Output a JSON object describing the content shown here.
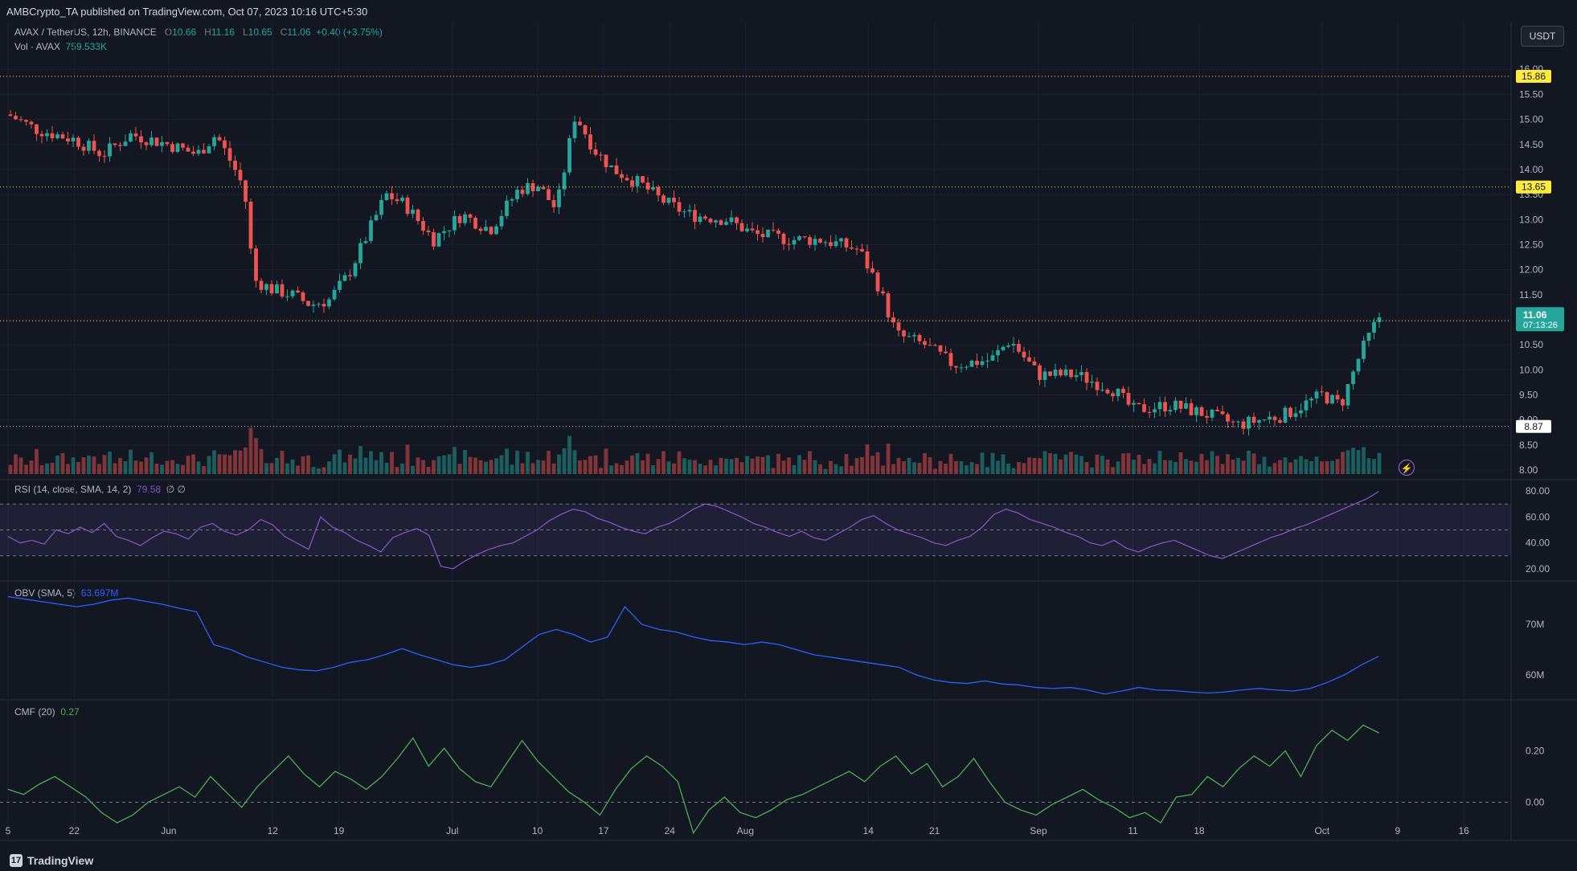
{
  "header": {
    "publisher": "AMBCrypto_TA published on TradingView.com, Oct 07, 2023 10:16 UTC+5:30",
    "currency_button": "USDT"
  },
  "legend": {
    "symbol": "AVAX / TetherUS, 12h, BINANCE",
    "o_key": "O",
    "o_val": "10.66",
    "h_key": "H",
    "h_val": "11.16",
    "l_key": "L",
    "l_val": "10.65",
    "c_key": "C",
    "c_val": "11.06",
    "change": "+0.40 (+3.75%)",
    "vol_label": "Vol · AVAX",
    "vol_val": "759.533K",
    "rsi_label": "RSI (14, close, SMA, 14, 2)",
    "rsi_val": "79.58",
    "rsi_extra": "∅ ∅",
    "obv_label": "OBV (SMA, 5)",
    "obv_val": "63.697M",
    "cmf_label": "CMF (20)",
    "cmf_val": "0.27"
  },
  "footer": {
    "brand": "TradingView",
    "logo": "17"
  },
  "colors": {
    "bull": "#26a69a",
    "bear": "#ef5350",
    "rsi": "#7e57c2",
    "obv": "#2962ff",
    "cmf": "#4caf50",
    "level": "#ffeb3b"
  },
  "chart_data": [
    {
      "type": "candlestick",
      "title": "AVAX / TetherUS, 12h, BINANCE",
      "x_tick_labels": [
        "5",
        "22",
        "Jun",
        "12",
        "19",
        "Jul",
        "10",
        "17",
        "24",
        "Aug",
        "14",
        "21",
        "Sep",
        "11",
        "18",
        "Oct",
        "9",
        "16"
      ],
      "y_tick_labels": [
        "8.00",
        "8.50",
        "9.00",
        "9.50",
        "10.00",
        "10.50",
        "11.00",
        "11.50",
        "12.00",
        "12.50",
        "13.00",
        "13.50",
        "14.00",
        "14.50",
        "15.00",
        "15.50",
        "16.00"
      ],
      "ylim": [
        8.0,
        16.1
      ],
      "close_path": [
        [
          "2023-05-15",
          15.1
        ],
        [
          "2023-05-18",
          14.8
        ],
        [
          "2023-05-22",
          14.6
        ],
        [
          "2023-05-25",
          14.3
        ],
        [
          "2023-05-28",
          14.7
        ],
        [
          "2023-06-01",
          14.5
        ],
        [
          "2023-06-04",
          14.3
        ],
        [
          "2023-06-06",
          14.7
        ],
        [
          "2023-06-08",
          14.0
        ],
        [
          "2023-06-09",
          13.6
        ],
        [
          "2023-06-10",
          11.8
        ],
        [
          "2023-06-12",
          11.6
        ],
        [
          "2023-06-14",
          11.5
        ],
        [
          "2023-06-16",
          11.3
        ],
        [
          "2023-06-18",
          11.4
        ],
        [
          "2023-06-20",
          11.9
        ],
        [
          "2023-06-22",
          12.7
        ],
        [
          "2023-06-24",
          13.5
        ],
        [
          "2023-06-26",
          13.3
        ],
        [
          "2023-06-29",
          12.6
        ],
        [
          "2023-07-02",
          13.1
        ],
        [
          "2023-07-05",
          12.8
        ],
        [
          "2023-07-08",
          13.6
        ],
        [
          "2023-07-10",
          13.7
        ],
        [
          "2023-07-12",
          13.2
        ],
        [
          "2023-07-14",
          15.1
        ],
        [
          "2023-07-16",
          14.4
        ],
        [
          "2023-07-18",
          14.0
        ],
        [
          "2023-07-21",
          13.7
        ],
        [
          "2023-07-23",
          13.4
        ],
        [
          "2023-07-26",
          13.1
        ],
        [
          "2023-07-30",
          13.0
        ],
        [
          "2023-08-02",
          12.7
        ],
        [
          "2023-08-06",
          12.6
        ],
        [
          "2023-08-09",
          12.6
        ],
        [
          "2023-08-13",
          12.4
        ],
        [
          "2023-08-15",
          11.7
        ],
        [
          "2023-08-17",
          10.7
        ],
        [
          "2023-08-20",
          10.5
        ],
        [
          "2023-08-23",
          10.1
        ],
        [
          "2023-08-27",
          10.2
        ],
        [
          "2023-08-29",
          10.6
        ],
        [
          "2023-09-01",
          9.9
        ],
        [
          "2023-09-05",
          9.9
        ],
        [
          "2023-09-09",
          9.6
        ],
        [
          "2023-09-11",
          9.2
        ],
        [
          "2023-09-15",
          9.3
        ],
        [
          "2023-09-19",
          9.1
        ],
        [
          "2023-09-22",
          8.9
        ],
        [
          "2023-09-27",
          9.1
        ],
        [
          "2023-10-01",
          9.5
        ],
        [
          "2023-10-03",
          9.3
        ],
        [
          "2023-10-05",
          10.3
        ],
        [
          "2023-10-07",
          11.06
        ]
      ],
      "price_levels": [
        15.86,
        13.65,
        10.98,
        8.87
      ],
      "last_price": "11.06",
      "countdown": "07:13:26",
      "level_labels": [
        "15.86",
        "13.65",
        "10.98",
        "8.87"
      ]
    },
    {
      "type": "line",
      "name": "RSI (14, close, SMA, 14, 2)",
      "y_tick_labels": [
        "20.00",
        "40.00",
        "60.00",
        "80.00"
      ],
      "ylim": [
        15,
        85
      ],
      "band": [
        30,
        70
      ],
      "values": [
        45,
        40,
        42,
        39,
        50,
        47,
        52,
        48,
        55,
        45,
        42,
        38,
        44,
        49,
        47,
        43,
        52,
        55,
        49,
        46,
        50,
        58,
        54,
        45,
        40,
        35,
        60,
        52,
        48,
        42,
        38,
        33,
        44,
        48,
        51,
        46,
        22,
        20,
        26,
        31,
        35,
        38,
        40,
        45,
        50,
        57,
        62,
        66,
        64,
        59,
        56,
        52,
        49,
        47,
        52,
        55,
        60,
        66,
        70,
        68,
        64,
        60,
        55,
        52,
        48,
        45,
        49,
        44,
        42,
        47,
        52,
        58,
        61,
        55,
        50,
        47,
        44,
        40,
        38,
        42,
        45,
        52,
        62,
        66,
        63,
        58,
        55,
        52,
        48,
        45,
        40,
        38,
        42,
        36,
        33,
        37,
        40,
        42,
        38,
        34,
        30,
        28,
        32,
        36,
        40,
        44,
        47,
        51,
        54,
        58,
        62,
        66,
        70,
        74,
        79.58
      ]
    },
    {
      "type": "line",
      "name": "OBV (SMA, 5)",
      "y_tick_labels": [
        "60M",
        "70M"
      ],
      "ylim": [
        56,
        77.5
      ],
      "values": [
        75.5,
        75.0,
        74.5,
        74.0,
        73.5,
        74.0,
        74.8,
        75.2,
        74.6,
        74.0,
        73.2,
        72.5,
        66.0,
        65.0,
        63.5,
        62.5,
        61.5,
        61.0,
        60.8,
        61.5,
        62.5,
        63.0,
        64.0,
        65.2,
        64.0,
        63.0,
        62.0,
        61.5,
        62.0,
        63.0,
        65.5,
        68.0,
        69.0,
        68.0,
        66.5,
        67.5,
        73.5,
        70.0,
        69.0,
        68.5,
        67.5,
        66.8,
        66.5,
        66.0,
        66.5,
        66.0,
        65.0,
        64.0,
        63.5,
        63.0,
        62.5,
        62.0,
        61.5,
        60.0,
        59.0,
        58.5,
        58.3,
        58.8,
        58.2,
        58.0,
        57.5,
        57.3,
        57.5,
        57.0,
        56.2,
        56.8,
        57.5,
        57.0,
        56.9,
        56.6,
        56.4,
        56.6,
        57.0,
        57.3,
        57.0,
        56.8,
        57.3,
        58.5,
        60.0,
        62.0,
        63.697
      ]
    },
    {
      "type": "line",
      "name": "CMF (20)",
      "y_tick_labels": [
        "0.00",
        "0.20"
      ],
      "ylim": [
        -0.13,
        0.37
      ],
      "values": [
        0.05,
        0.03,
        0.07,
        0.1,
        0.06,
        0.02,
        -0.04,
        -0.08,
        -0.05,
        0.0,
        0.03,
        0.06,
        0.02,
        0.1,
        0.04,
        -0.02,
        0.06,
        0.12,
        0.18,
        0.11,
        0.06,
        0.12,
        0.09,
        0.05,
        0.1,
        0.17,
        0.25,
        0.14,
        0.21,
        0.13,
        0.08,
        0.06,
        0.15,
        0.24,
        0.16,
        0.1,
        0.04,
        0.0,
        -0.05,
        0.05,
        0.13,
        0.18,
        0.14,
        0.08,
        -0.12,
        -0.03,
        0.02,
        -0.04,
        -0.06,
        -0.03,
        0.01,
        0.03,
        0.06,
        0.09,
        0.12,
        0.08,
        0.14,
        0.18,
        0.11,
        0.15,
        0.06,
        0.1,
        0.17,
        0.08,
        0.0,
        -0.03,
        -0.05,
        -0.01,
        0.02,
        0.05,
        0.01,
        -0.02,
        -0.06,
        -0.04,
        -0.08,
        0.02,
        0.03,
        0.1,
        0.06,
        0.13,
        0.18,
        0.14,
        0.2,
        0.1,
        0.22,
        0.28,
        0.24,
        0.3,
        0.27
      ]
    }
  ]
}
